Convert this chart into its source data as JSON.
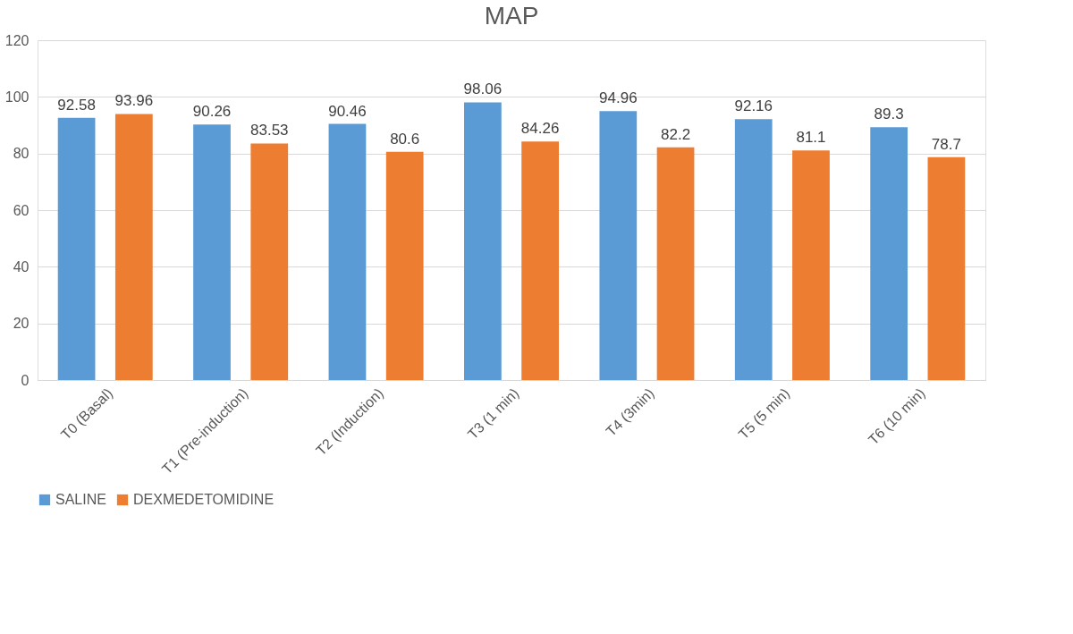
{
  "chart_data": {
    "type": "bar",
    "title": "MAP",
    "categories": [
      "T0 (Basal)",
      "T1 (Pre-induction)",
      "T2 (Induction)",
      "T3 (1 min)",
      "T4 (3min)",
      "T5 (5 min)",
      "T6 (10 min)"
    ],
    "series": [
      {
        "name": "SALINE",
        "color": "#5b9bd5",
        "values": [
          92.58,
          90.26,
          90.46,
          98.06,
          94.96,
          92.16,
          89.3
        ]
      },
      {
        "name": "DEXMEDETOMIDINE",
        "color": "#ed7d31",
        "values": [
          93.96,
          83.53,
          80.6,
          84.26,
          82.2,
          81.1,
          78.7
        ]
      }
    ],
    "ylim": [
      0,
      120
    ],
    "yticks": [
      0,
      20,
      40,
      60,
      80,
      100,
      120
    ],
    "grid": "y",
    "legend": "bottom",
    "data_labels": true
  }
}
